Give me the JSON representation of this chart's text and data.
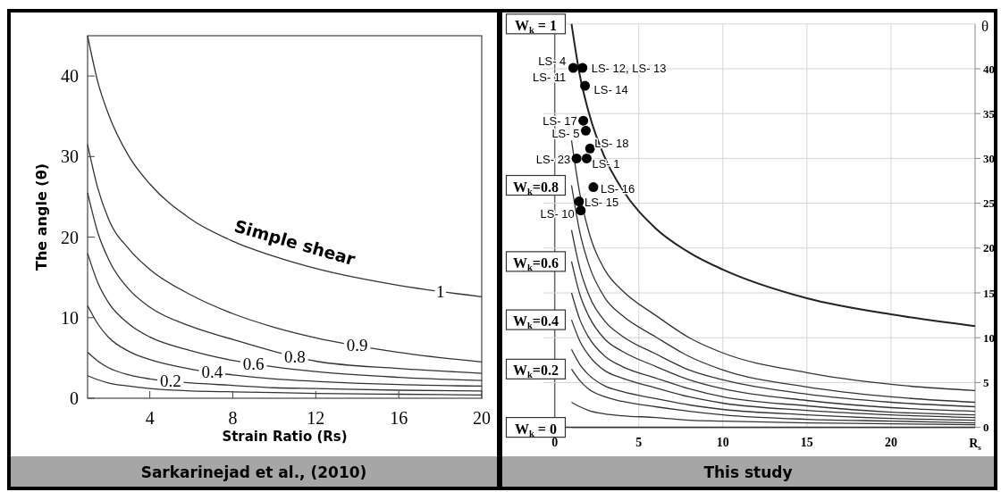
{
  "chart_data": [
    {
      "type": "line",
      "title": "Sarkarinejad et al., (2010)",
      "xlabel": "Strain Ratio (Rs)",
      "ylabel": "The angle (θ)",
      "xlim": [
        1,
        20
      ],
      "xticks": [
        4,
        8,
        12,
        16,
        20
      ],
      "ylim": [
        0,
        45
      ],
      "yticks": [
        0,
        10,
        20,
        30,
        40
      ],
      "grid": false,
      "x": [
        1,
        1.5,
        2,
        3,
        4,
        6,
        8,
        10,
        12,
        16,
        20
      ],
      "series": [
        {
          "name": "1",
          "color": "#333333",
          "values": [
            45,
            39.2,
            35.3,
            30,
            26.6,
            22.2,
            19.5,
            17.6,
            16.1,
            14.0,
            12.6
          ]
        },
        {
          "name": "0.9",
          "color": "#333333",
          "values": [
            31.5,
            26,
            22.3,
            18.5,
            16,
            12.8,
            10.5,
            8.8,
            7.5,
            5.7,
            4.5
          ]
        },
        {
          "name": "0.8",
          "color": "#333333",
          "values": [
            25.5,
            20.5,
            17.3,
            13.5,
            11.3,
            8.9,
            7.3,
            5.8,
            4.6,
            3.7,
            3.1
          ]
        },
        {
          "name": "0.6",
          "color": "#333333",
          "values": [
            18,
            14.3,
            11.9,
            9.2,
            7.6,
            5.9,
            4.7,
            3.9,
            3.3,
            2.6,
            2.2
          ]
        },
        {
          "name": "0.4",
          "color": "#333333",
          "values": [
            11.5,
            9.2,
            7.6,
            5.8,
            4.8,
            3.6,
            2.9,
            2.4,
            2.1,
            1.7,
            1.5
          ]
        },
        {
          "name": "0.2",
          "color": "#333333",
          "values": [
            5.7,
            4.6,
            3.8,
            2.9,
            2.4,
            1.9,
            1.6,
            1.3,
            1.2,
            1.0,
            0.9
          ]
        },
        {
          "color": "#333333",
          "values": [
            2.8,
            2.3,
            1.9,
            1.5,
            1.2,
            0.9,
            0.8,
            0.7,
            0.6,
            0.5,
            0.4
          ]
        }
      ],
      "annotations": [
        "Simple shear"
      ]
    },
    {
      "type": "line",
      "title": "This study",
      "xlabel": "R$_{s}$",
      "ylabel": "θ",
      "xlim": [
        -0.7,
        25
      ],
      "xticks": [
        0,
        5,
        10,
        15,
        20
      ],
      "ylim": [
        0,
        45
      ],
      "yticks": [
        0,
        5,
        10,
        15,
        20,
        25,
        30,
        35,
        40
      ],
      "grid": true,
      "x": [
        1,
        1.5,
        2,
        3,
        4,
        6,
        8,
        10,
        15,
        20,
        25
      ],
      "series": [
        {
          "color": "#222222",
          "values": [
            45,
            39.2,
            35.3,
            30,
            26.6,
            22.2,
            19.5,
            17.6,
            14.4,
            12.6,
            11.3
          ]
        },
        {
          "color": "#333333",
          "values": [
            32,
            26.0,
            22.0,
            17.5,
            15.3,
            12.5,
            10.0,
            8.3,
            6.1,
            4.8,
            4.1
          ]
        },
        {
          "color": "#333333",
          "values": [
            27,
            21.7,
            18.3,
            14.4,
            12.5,
            10.1,
            7.9,
            6.4,
            4.5,
            3.4,
            2.8
          ]
        },
        {
          "color": "#333333",
          "values": [
            22,
            17.7,
            14.9,
            11.8,
            10.2,
            8.2,
            6.4,
            5.3,
            3.7,
            2.8,
            2.3
          ]
        },
        {
          "color": "#333333",
          "values": [
            18.5,
            14.8,
            12.5,
            9.8,
            8.5,
            6.8,
            5.3,
            4.3,
            3.0,
            2.2,
            1.8
          ]
        },
        {
          "color": "#333333",
          "values": [
            15,
            12.0,
            10.1,
            7.9,
            6.8,
            5.5,
            4.3,
            3.4,
            2.4,
            1.7,
            1.4
          ]
        },
        {
          "color": "#333333",
          "values": [
            12,
            9.6,
            8.1,
            6.3,
            5.5,
            4.4,
            3.4,
            2.7,
            1.9,
            1.4,
            1.1
          ]
        },
        {
          "color": "#333333",
          "values": [
            8.7,
            7.0,
            5.9,
            4.6,
            4.0,
            3.2,
            2.5,
            2.0,
            1.4,
            1.0,
            0.8
          ]
        },
        {
          "color": "#333333",
          "values": [
            6.5,
            5.2,
            4.3,
            3.4,
            2.9,
            2.3,
            1.8,
            1.4,
            0.9,
            0.7,
            0.5
          ]
        },
        {
          "color": "#333333",
          "values": [
            2.8,
            2.3,
            1.9,
            1.5,
            1.3,
            1.1,
            0.8,
            0.7,
            0.5,
            0.4,
            0.3
          ]
        },
        {
          "color": "#333333",
          "values": [
            0,
            0,
            0,
            0,
            0,
            0,
            0,
            0,
            0,
            0,
            0
          ]
        },
        {
          "type": "scatter",
          "marker": "circle",
          "color": "#000000",
          "x": [
            1.1,
            1.65,
            1.8,
            1.7,
            1.85,
            2.1,
            1.3,
            1.9,
            2.3,
            1.45,
            1.55
          ],
          "values": [
            40.1,
            40.1,
            38.1,
            34.2,
            33.1,
            31.1,
            30.0,
            30.0,
            26.8,
            25.2,
            24.2
          ]
        }
      ],
      "annotations": [
        {
          "text": "W$_{k}$ = 1",
          "x": 1,
          "y": 45
        },
        {
          "text": "W$_{k}$=0.8",
          "x": 1,
          "y": 27
        },
        {
          "text": "W$_{k}$=0.6",
          "x": 1,
          "y": 18.5
        },
        {
          "text": "W$_{k}$=0.4",
          "x": 1,
          "y": 12
        },
        {
          "text": "W$_{k}$=0.2",
          "x": 1,
          "y": 6.5
        },
        {
          "text": "W$_{k}$ = 0",
          "x": 1,
          "y": 0
        },
        {
          "text": "LS- 4",
          "x": 1.1,
          "y": 40.1
        },
        {
          "text": "LS- 11",
          "x": 1.1,
          "y": 40.1
        },
        {
          "text": "LS- 12, LS- 13",
          "x": 1.65,
          "y": 40.1
        },
        {
          "text": "LS- 14",
          "x": 1.8,
          "y": 38.1
        },
        {
          "text": "LS- 17",
          "x": 1.7,
          "y": 34.2
        },
        {
          "text": "LS- 5",
          "x": 1.85,
          "y": 33.1
        },
        {
          "text": "LS- 18",
          "x": 2.1,
          "y": 31.1
        },
        {
          "text": "LS- 23",
          "x": 1.3,
          "y": 30.0
        },
        {
          "text": "LS- 1",
          "x": 1.9,
          "y": 30.0
        },
        {
          "text": "LS- 16",
          "x": 2.3,
          "y": 26.8
        },
        {
          "text": "LS- 15",
          "x": 1.45,
          "y": 25.2
        },
        {
          "text": "LS- 10",
          "x": 1.55,
          "y": 24.2
        }
      ]
    }
  ]
}
